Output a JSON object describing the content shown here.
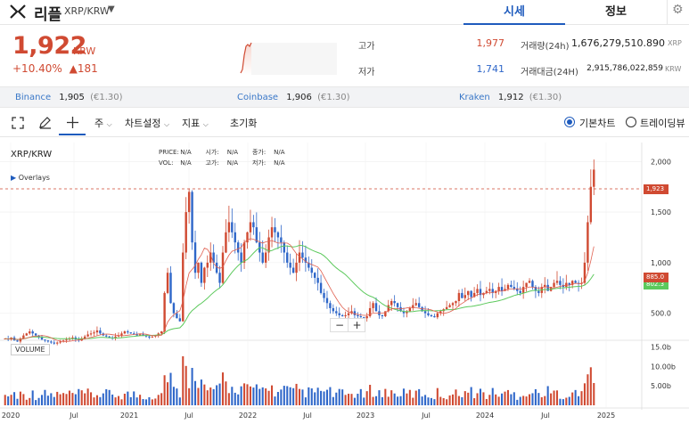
{
  "header": {
    "coin_name": "리플",
    "pair": "XRP/KRW",
    "tabs": [
      {
        "label": "시세",
        "active": true
      },
      {
        "label": "정보",
        "active": false
      }
    ]
  },
  "price": {
    "current": "1,922",
    "unit": "KRW",
    "change_pct": "+10.40%",
    "change_abs": "▲181"
  },
  "stats": {
    "high_label": "고가",
    "high": "1,977",
    "low_label": "저가",
    "low": "1,741",
    "volume_label": "거래량(24h)",
    "volume": "1,676,279,510.890",
    "volume_unit": "XRP",
    "amount_label": "거래대금(24H)",
    "amount": "2,915,786,022,859",
    "amount_unit": "KRW"
  },
  "exchanges": [
    {
      "name": "Binance",
      "price": "1,905",
      "sub": "(€1.30)"
    },
    {
      "name": "Coinbase",
      "price": "1,906",
      "sub": "(€1.30)"
    },
    {
      "name": "Kraken",
      "price": "1,912",
      "sub": "(€1.30)"
    }
  ],
  "toolbar": {
    "period_label": "주",
    "chart_settings": "차트설정",
    "indicators": "지표",
    "reset": "초기화",
    "basic_chart": "기본차트",
    "tradingview": "트레이딩뷰"
  },
  "chart": {
    "title": "XRP/KRW",
    "overlays": "Overlays",
    "info": {
      "price_label": "PRICE:",
      "price": "N/A",
      "open_label": "시가:",
      "open": "N/A",
      "close_label": "종가:",
      "close": "N/A",
      "vol_label": "VOL:",
      "vol": "N/A",
      "high_label": "고가:",
      "high": "N/A",
      "low_label": "저가:",
      "low": "N/A"
    },
    "volume_label": "VOLUME",
    "zoom_minus": "−",
    "zoom_plus": "+",
    "tags": {
      "last": "1,923",
      "ma_short": "885.0",
      "ma_long": "802.3"
    },
    "colors": {
      "up": "#d04a32",
      "down": "#2f67c9",
      "ma_short": "#e06050",
      "ma_long": "#5cc95c",
      "accent": "#1e5bbd"
    }
  },
  "chart_data": {
    "type": "candlestick",
    "title": "XRP/KRW",
    "x_ticks": [
      "2020",
      "Jul",
      "2021",
      "Jul",
      "2022",
      "Jul",
      "2023",
      "Jul",
      "2024",
      "Jul",
      "2025"
    ],
    "y_ticks": [
      "500.0",
      "1,000",
      "1,500",
      "2,000"
    ],
    "ylim": [
      250,
      2100
    ],
    "volume_ticks": [
      "5.00b",
      "10.00b",
      "15.0b"
    ],
    "volume_ylim": [
      0,
      16
    ],
    "close_weekly": [
      250,
      240,
      260,
      230,
      220,
      250,
      280,
      300,
      320,
      300,
      280,
      260,
      240,
      230,
      220,
      210,
      200,
      210,
      220,
      230,
      240,
      250,
      260,
      240,
      230,
      250,
      270,
      290,
      300,
      310,
      330,
      300,
      280,
      270,
      260,
      250,
      270,
      280,
      300,
      320,
      310,
      300,
      290,
      280,
      290,
      280,
      270,
      260,
      270,
      280,
      300,
      320,
      700,
      900,
      600,
      500,
      450,
      420,
      1100,
      1500,
      1700,
      1200,
      900,
      1000,
      800,
      950,
      1000,
      1100,
      1000,
      900,
      800,
      1100,
      1300,
      1400,
      1300,
      1200,
      1100,
      1000,
      1200,
      1300,
      1400,
      1350,
      1200,
      1100,
      1000,
      1100,
      1250,
      1350,
      1300,
      1250,
      1200,
      1100,
      1000,
      950,
      900,
      1000,
      1100,
      1050,
      1000,
      950,
      900,
      850,
      800,
      700,
      650,
      600,
      550,
      520,
      500,
      480,
      470,
      480,
      500,
      520,
      480,
      470,
      460,
      450,
      470,
      550,
      600,
      520,
      480,
      470,
      520,
      580,
      620,
      600,
      560,
      520,
      500,
      520,
      550,
      580,
      600,
      560,
      520,
      500,
      480,
      470,
      460,
      500,
      520,
      540,
      560,
      580,
      600,
      620,
      700,
      650,
      680,
      720,
      660,
      700,
      740,
      680,
      700,
      720,
      740,
      700,
      720,
      760,
      720,
      740,
      780,
      760,
      740,
      720,
      700,
      760,
      800,
      820,
      760,
      720,
      700,
      760,
      780,
      720,
      760,
      800,
      820,
      780,
      760,
      800,
      780,
      820,
      800,
      790,
      800,
      1000,
      1400,
      1750,
      1920
    ],
    "ma_short_last": 885.0,
    "ma_long_last": 802.3,
    "last_price": 1923
  }
}
